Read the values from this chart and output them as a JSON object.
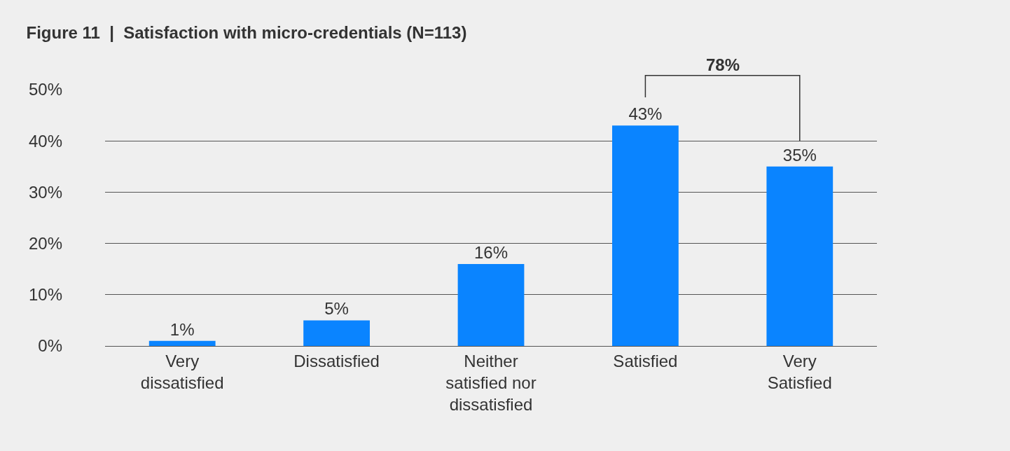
{
  "chart_data": {
    "type": "bar",
    "title": "Figure 11  |  Satisfaction with micro-credentials (N=113)",
    "categories": [
      "Very dissatisfied",
      "Dissatisfied",
      "Neither satisfied nor dissatisfied",
      "Satisfied",
      "Very Satisfied"
    ],
    "values": [
      1,
      5,
      16,
      43,
      35
    ],
    "value_labels": [
      "1%",
      "5%",
      "16%",
      "43%",
      "35%"
    ],
    "color": "#0a84ff",
    "ylim": [
      0,
      50
    ],
    "yticks": [
      {
        "value": 0,
        "label": "0%"
      },
      {
        "value": 10,
        "label": "10%"
      },
      {
        "value": 20,
        "label": "20%"
      },
      {
        "value": 30,
        "label": "30%"
      },
      {
        "value": 40,
        "label": "40%"
      },
      {
        "value": 50,
        "label": "50%"
      }
    ],
    "grid": "y",
    "annotations": [
      "78%"
    ]
  }
}
